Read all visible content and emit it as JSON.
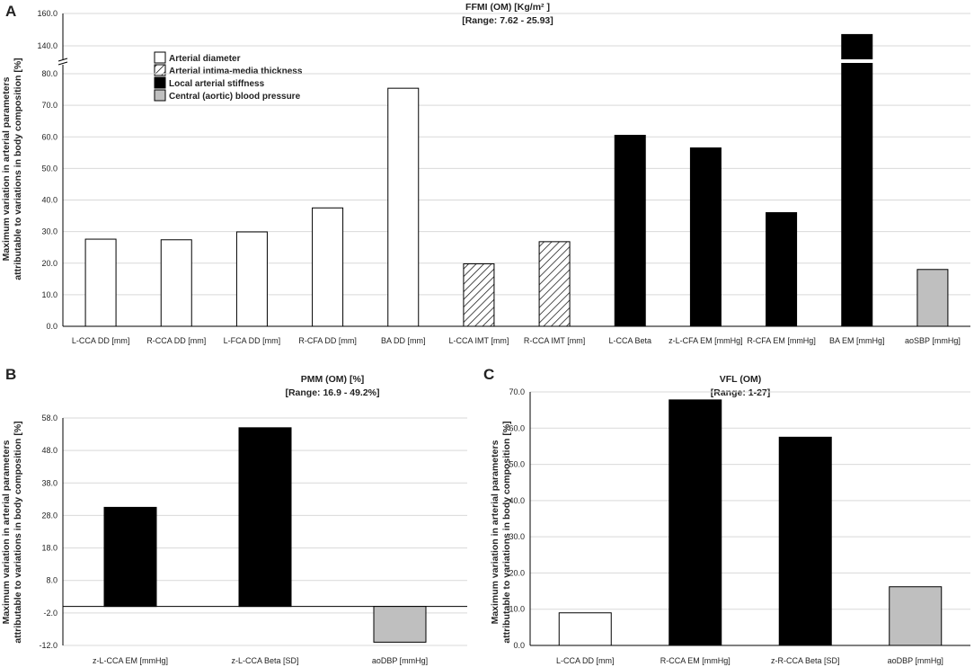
{
  "legend": [
    {
      "label": "Arterial diameter",
      "style": "white"
    },
    {
      "label": "Arterial intima-media thickness",
      "style": "hatch"
    },
    {
      "label": "Local arterial stiffness",
      "style": "black"
    },
    {
      "label": "Central (aortic) blood pressure",
      "style": "gray"
    }
  ],
  "colors": {
    "black": "#000000",
    "gray": "#bfbfbf",
    "white": "#ffffff",
    "grid": "#d9d9d9"
  },
  "chart_data": [
    {
      "panel": "A",
      "type": "bar",
      "title": "FFMI (OM) [Kg/m² ]",
      "subtitle": "[Range: 7.62 - 25.93]",
      "ylabel": [
        "Maximum variation in arterial parameters",
        "attributable to variations in body composition [%]"
      ],
      "ylim": [
        0,
        160
      ],
      "axis_break": [
        85,
        135
      ],
      "y_ticks": [
        "0.0",
        "10.0",
        "20.0",
        "30.0",
        "40.0",
        "50.0",
        "60.0",
        "70.0",
        "80.0",
        "140.0",
        "160.0"
      ],
      "y_tick_values": [
        0,
        10,
        20,
        30,
        40,
        50,
        60,
        70,
        80,
        140,
        160
      ],
      "categories": [
        "L-CCA DD [mm]",
        "R-CCA DD [mm]",
        "L-FCA DD [mm]",
        "R-CFA DD [mm]",
        "BA DD [mm]",
        "L-CCA IMT [mm]",
        "R-CCA IMT [mm]",
        "L-CCA Beta",
        "z-L-CFA EM [mmHg]",
        "R-CFA EM [mmHg]",
        "BA EM [mmHg]",
        "aoSBP [mmHg]"
      ],
      "values": [
        27.6,
        27.4,
        29.9,
        37.5,
        75.4,
        19.8,
        26.8,
        60.5,
        56.5,
        36.0,
        147.0,
        18.0
      ],
      "styles": [
        "white",
        "white",
        "white",
        "white",
        "white",
        "hatch",
        "hatch",
        "black",
        "black",
        "black",
        "black",
        "gray"
      ]
    },
    {
      "panel": "B",
      "type": "bar",
      "title": "PMM (OM) [%]",
      "subtitle": "[Range: 16.9 - 49.2%]",
      "ylabel": [
        "Maximum variation in arterial parameters",
        "attributable to variations in body composition [%]"
      ],
      "ylim": [
        -12,
        58
      ],
      "y_ticks": [
        "-12.0",
        "-2.0",
        "8.0",
        "18.0",
        "28.0",
        "38.0",
        "48.0",
        "58.0"
      ],
      "y_tick_values": [
        -12,
        -2,
        8,
        18,
        28,
        38,
        48,
        58
      ],
      "categories": [
        "z-L-CCA EM [mmHg]",
        "z-L-CCA Beta [SD]",
        "aoDBP [mmHg]"
      ],
      "values": [
        30.5,
        55.0,
        -11.0
      ],
      "styles": [
        "black",
        "black",
        "gray"
      ]
    },
    {
      "panel": "C",
      "type": "bar",
      "title": "VFL (OM)",
      "subtitle": "[Range: 1-27]",
      "ylabel": [
        "Maximum variation in arterial parameters",
        "attributable to variations in body composition [%]"
      ],
      "ylim": [
        0,
        70
      ],
      "y_ticks": [
        "0.0",
        "10.0",
        "20.0",
        "30.0",
        "40.0",
        "50.0",
        "60.0",
        "70.0"
      ],
      "y_tick_values": [
        0,
        10,
        20,
        30,
        40,
        50,
        60,
        70
      ],
      "categories": [
        "L-CCA DD [mm]",
        "R-CCA EM [mmHg]",
        "z-R-CCA Beta [SD]",
        "aoDBP [mmHg]"
      ],
      "values": [
        9.0,
        67.8,
        57.5,
        16.2
      ],
      "styles": [
        "white",
        "black",
        "black",
        "gray"
      ]
    }
  ]
}
